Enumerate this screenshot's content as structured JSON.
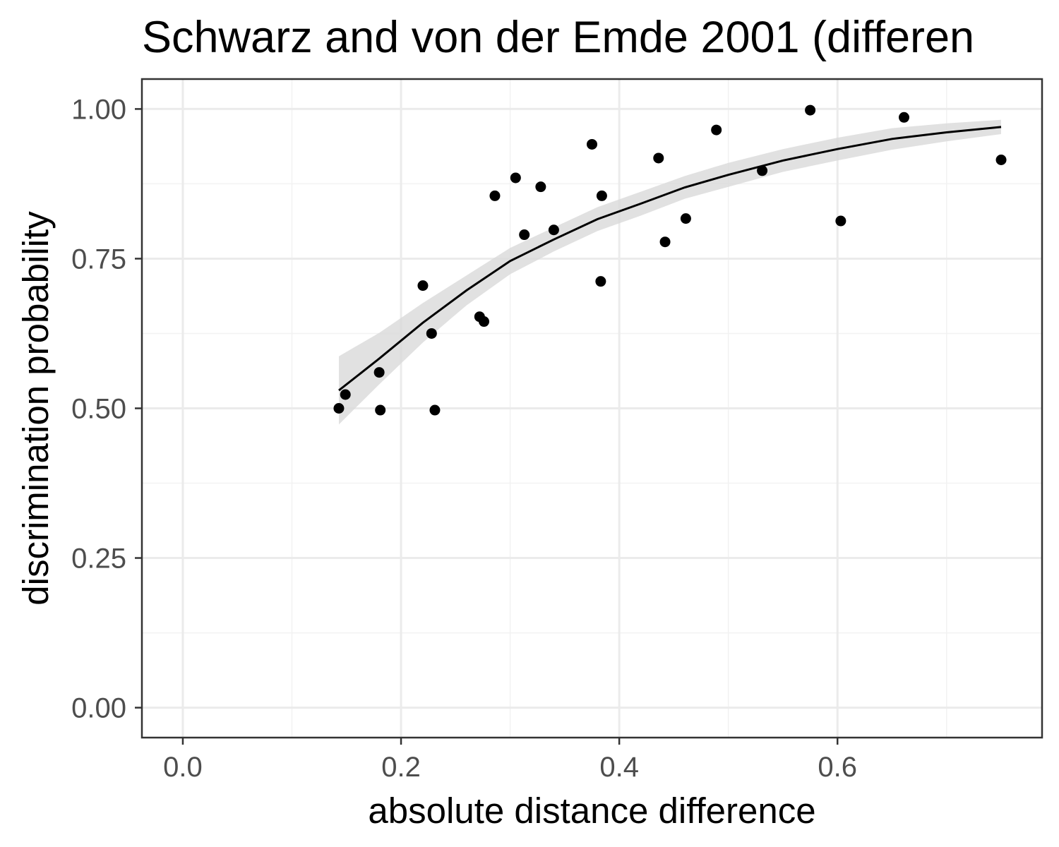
{
  "chart_data": {
    "type": "scatter",
    "title": "Schwarz and von der Emde 2001 (differen",
    "xlabel": "absolute distance difference",
    "ylabel": "discrimination probability",
    "xlim": [
      -0.0375,
      0.7875
    ],
    "ylim": [
      -0.05,
      1.05
    ],
    "x_ticks": [
      0.0,
      0.2,
      0.4,
      0.6
    ],
    "x_tick_labels": [
      "0.0",
      "0.2",
      "0.4",
      "0.6"
    ],
    "y_ticks": [
      0.0,
      0.25,
      0.5,
      0.75,
      1.0
    ],
    "y_tick_labels": [
      "0.00",
      "0.25",
      "0.50",
      "0.75",
      "1.00"
    ],
    "x_minor_ticks": [
      0.1,
      0.3,
      0.5,
      0.7
    ],
    "y_minor_ticks": [
      0.125,
      0.375,
      0.625,
      0.875
    ],
    "grid": true,
    "series": [
      {
        "points": [
          {
            "x": 0.143,
            "y": 0.5
          },
          {
            "x": 0.149,
            "y": 0.523
          },
          {
            "x": 0.18,
            "y": 0.56
          },
          {
            "x": 0.181,
            "y": 0.497
          },
          {
            "x": 0.22,
            "y": 0.705
          },
          {
            "x": 0.228,
            "y": 0.625
          },
          {
            "x": 0.231,
            "y": 0.497
          },
          {
            "x": 0.272,
            "y": 0.653
          },
          {
            "x": 0.276,
            "y": 0.645
          },
          {
            "x": 0.286,
            "y": 0.855
          },
          {
            "x": 0.305,
            "y": 0.885
          },
          {
            "x": 0.313,
            "y": 0.79
          },
          {
            "x": 0.328,
            "y": 0.87
          },
          {
            "x": 0.34,
            "y": 0.798
          },
          {
            "x": 0.375,
            "y": 0.941
          },
          {
            "x": 0.383,
            "y": 0.712
          },
          {
            "x": 0.384,
            "y": 0.855
          },
          {
            "x": 0.436,
            "y": 0.918
          },
          {
            "x": 0.442,
            "y": 0.778
          },
          {
            "x": 0.461,
            "y": 0.817
          },
          {
            "x": 0.489,
            "y": 0.965
          },
          {
            "x": 0.531,
            "y": 0.897
          },
          {
            "x": 0.575,
            "y": 0.998
          },
          {
            "x": 0.603,
            "y": 0.813
          },
          {
            "x": 0.661,
            "y": 0.986
          },
          {
            "x": 0.75,
            "y": 0.915
          }
        ]
      }
    ],
    "fit": {
      "x": [
        0.143,
        0.18,
        0.22,
        0.26,
        0.3,
        0.34,
        0.38,
        0.42,
        0.46,
        0.5,
        0.55,
        0.6,
        0.65,
        0.7,
        0.75
      ],
      "y": [
        0.53,
        0.583,
        0.643,
        0.697,
        0.746,
        0.782,
        0.816,
        0.842,
        0.869,
        0.89,
        0.914,
        0.933,
        0.95,
        0.961,
        0.97
      ],
      "lower": [
        0.473,
        0.54,
        0.61,
        0.672,
        0.724,
        0.762,
        0.796,
        0.822,
        0.85,
        0.87,
        0.895,
        0.914,
        0.932,
        0.946,
        0.958
      ],
      "upper": [
        0.587,
        0.626,
        0.676,
        0.722,
        0.768,
        0.802,
        0.836,
        0.862,
        0.888,
        0.91,
        0.933,
        0.952,
        0.968,
        0.976,
        0.982
      ]
    },
    "colors": {
      "points": "#000000",
      "fit_line": "#000000",
      "ribbon": "#d9d9d9",
      "grid_major": "#ebebeb",
      "grid_minor": "#f2f2f2",
      "panel_border": "#333333"
    }
  }
}
